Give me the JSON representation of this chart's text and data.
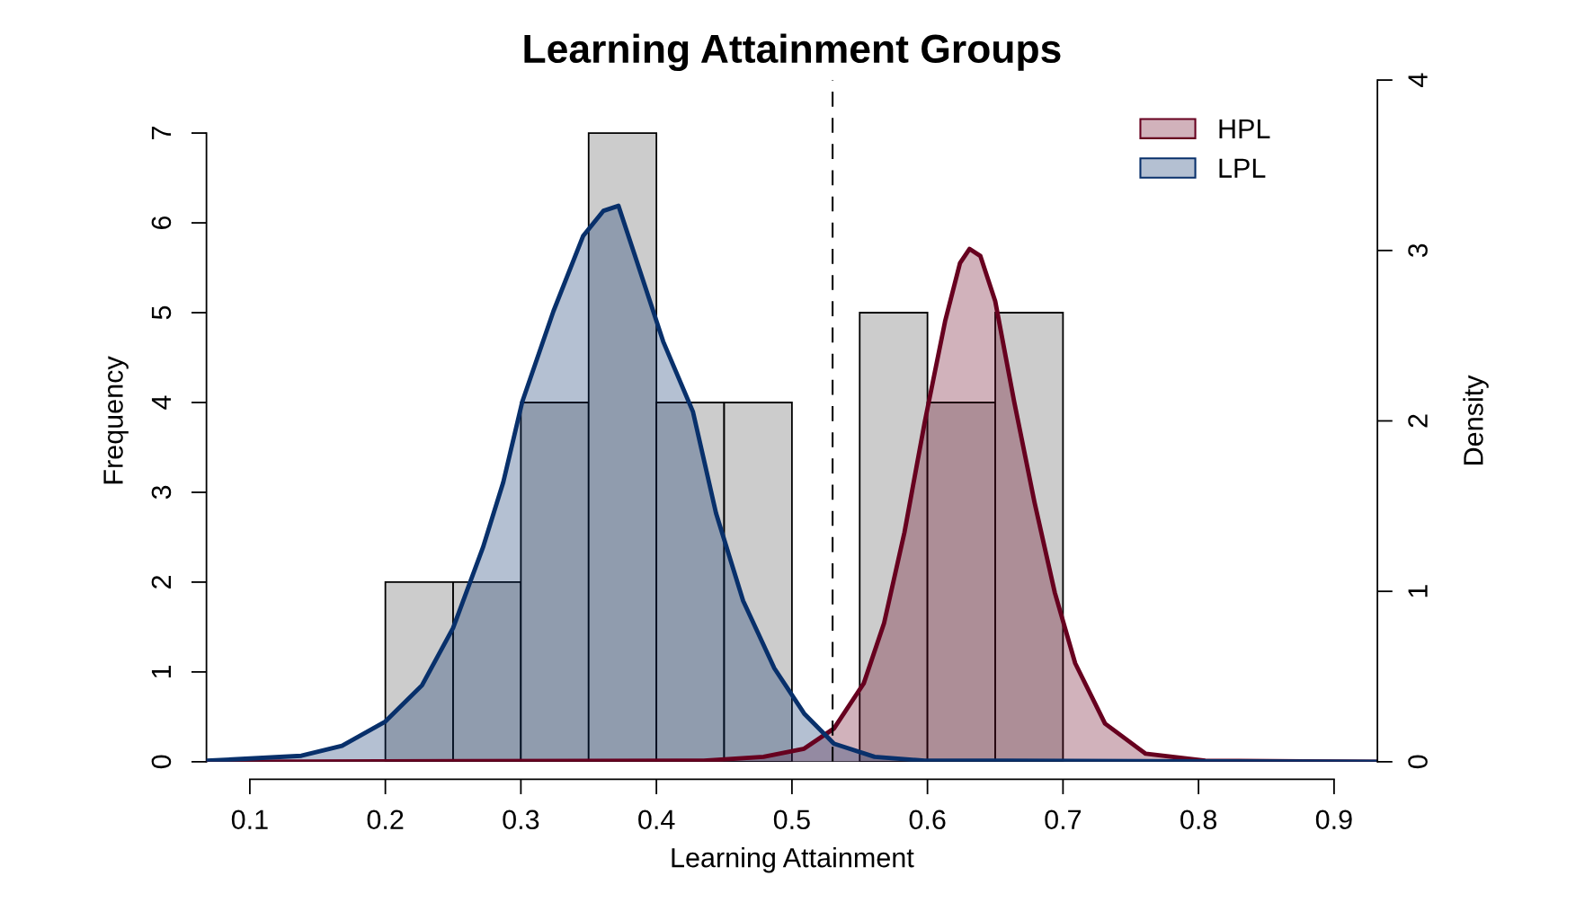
{
  "chart_data": {
    "type": "histogram",
    "title": "Learning Attainment Groups",
    "xlabel": "Learning Attainment",
    "ylabel": "Frequency",
    "y2label": "Density",
    "bins": [
      0.2,
      0.25,
      0.3,
      0.35,
      0.4,
      0.45,
      0.5,
      0.55,
      0.6,
      0.65,
      0.7
    ],
    "values": [
      2,
      2,
      4,
      7,
      4,
      4,
      0,
      5,
      4,
      5
    ],
    "color": "#cccccc",
    "xlim": [
      0.068,
      0.932
    ],
    "xticks": [
      0.1,
      0.2,
      0.3,
      0.4,
      0.5,
      0.6,
      0.7,
      0.8,
      0.9
    ],
    "ylim": [
      0,
      7.59
    ],
    "yticks": [
      0,
      1,
      2,
      3,
      4,
      5,
      6,
      7
    ],
    "y2lim": [
      0,
      4
    ],
    "y2ticks": [
      0,
      1,
      2,
      3,
      4
    ],
    "series": [
      {
        "name": "HPL",
        "type": "area",
        "axis": "y2",
        "color": "#67001f",
        "x": [
          0.068,
          0.435,
          0.479,
          0.509,
          0.531,
          0.553,
          0.568,
          0.583,
          0.598,
          0.613,
          0.624,
          0.631,
          0.639,
          0.65,
          0.664,
          0.679,
          0.694,
          0.709,
          0.731,
          0.761,
          0.805,
          0.932
        ],
        "values": [
          0,
          0.006,
          0.029,
          0.077,
          0.195,
          0.46,
          0.814,
          1.345,
          1.994,
          2.584,
          2.926,
          3.009,
          2.968,
          2.702,
          2.112,
          1.522,
          0.991,
          0.578,
          0.224,
          0.047,
          0.006,
          0
        ]
      },
      {
        "name": "LPL",
        "type": "area",
        "axis": "y2",
        "color": "#08306b",
        "x": [
          0.068,
          0.138,
          0.168,
          0.2,
          0.227,
          0.25,
          0.272,
          0.287,
          0.301,
          0.324,
          0.346,
          0.361,
          0.372,
          0.383,
          0.405,
          0.427,
          0.444,
          0.464,
          0.487,
          0.509,
          0.531,
          0.561,
          0.598,
          0.657,
          0.932
        ],
        "values": [
          0.006,
          0.035,
          0.094,
          0.236,
          0.448,
          0.785,
          1.257,
          1.64,
          2.112,
          2.643,
          3.086,
          3.233,
          3.262,
          2.997,
          2.466,
          2.053,
          1.458,
          0.944,
          0.549,
          0.283,
          0.106,
          0.029,
          0.006,
          0.006,
          0
        ]
      }
    ],
    "ref_lines": [
      {
        "axis": "x",
        "value": 0.53,
        "line_style": "dashed",
        "color": "#000000"
      }
    ],
    "legend": "top right",
    "grid": false
  }
}
